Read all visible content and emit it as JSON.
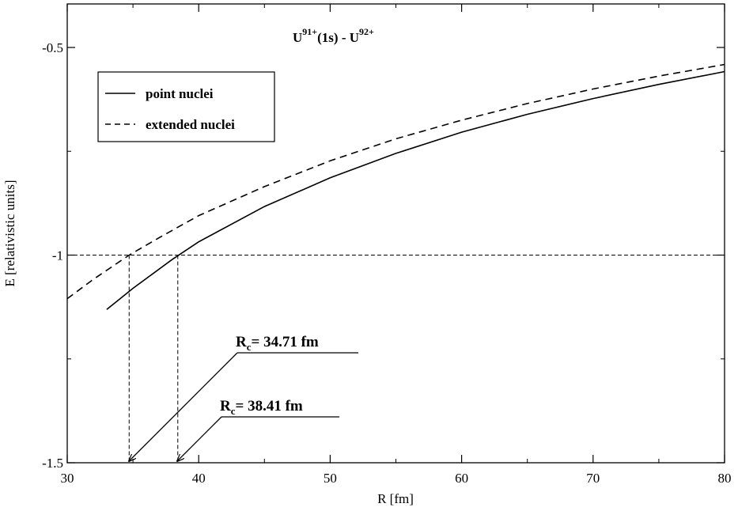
{
  "chart_data": {
    "type": "line",
    "title": {
      "base1": "U",
      "sup1": "91+",
      "middle": "(1s) - U",
      "sup2": "92+"
    },
    "xlabel": "R [fm]",
    "ylabel": "E [relativistic units]",
    "xlim": [
      30,
      80
    ],
    "ylim": [
      -1.5,
      -0.4
    ],
    "x_ticks": [
      30,
      40,
      50,
      60,
      70,
      80
    ],
    "x_tick_labels": [
      "30",
      "40",
      "50",
      "60",
      "70",
      "80"
    ],
    "y_ticks": [
      -1.5,
      -1.0,
      -0.5
    ],
    "y_tick_labels": [
      "-1.5",
      "-1",
      "-0.5"
    ],
    "grid": false,
    "legend_position": "top-left",
    "series": [
      {
        "name": "point nuclei",
        "style": "solid",
        "points": [
          [
            33.0,
            -1.131
          ],
          [
            35.0,
            -1.08
          ],
          [
            38.0,
            -1.01
          ],
          [
            40.0,
            -0.968
          ],
          [
            45.0,
            -0.883
          ],
          [
            50.0,
            -0.814
          ],
          [
            55.0,
            -0.755
          ],
          [
            60.0,
            -0.704
          ],
          [
            65.0,
            -0.661
          ],
          [
            70.0,
            -0.623
          ],
          [
            75.0,
            -0.589
          ],
          [
            80.0,
            -0.558
          ]
        ]
      },
      {
        "name": "extended nuclei",
        "style": "dashed",
        "points": [
          [
            30.0,
            -1.105
          ],
          [
            32.0,
            -1.058
          ],
          [
            34.71,
            -1.0
          ],
          [
            37.0,
            -0.958
          ],
          [
            40.0,
            -0.905
          ],
          [
            45.0,
            -0.835
          ],
          [
            50.0,
            -0.773
          ],
          [
            55.0,
            -0.72
          ],
          [
            60.0,
            -0.675
          ],
          [
            65.0,
            -0.635
          ],
          [
            70.0,
            -0.6
          ],
          [
            75.0,
            -0.569
          ],
          [
            80.0,
            -0.541
          ]
        ]
      }
    ],
    "reference_line": {
      "y": -1.0,
      "style": "dashed"
    },
    "annotations": [
      {
        "prefix": "R",
        "sub": "c",
        "text": "= 34.71 fm",
        "x": 34.71
      },
      {
        "prefix": "R",
        "sub": "c",
        "text": "= 38.41 fm",
        "x": 38.41
      }
    ]
  }
}
